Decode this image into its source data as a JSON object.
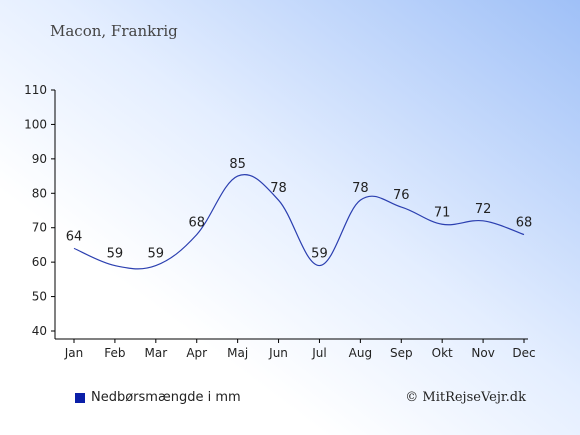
{
  "title": "Macon, Frankrig",
  "credit": "© MitRejseVejr.dk",
  "colors": {
    "line": "#2b3fb0",
    "axis": "#000000",
    "swatch": "#0b1fa8"
  },
  "chart_data": {
    "type": "line",
    "categories": [
      "Jan",
      "Feb",
      "Mar",
      "Apr",
      "Maj",
      "Jun",
      "Jul",
      "Aug",
      "Sep",
      "Okt",
      "Nov",
      "Dec"
    ],
    "series": [
      {
        "name": "Nedbørsmængde i mm",
        "values": [
          64,
          59,
          59,
          68,
          85,
          78,
          59,
          78,
          76,
          71,
          72,
          68
        ]
      }
    ],
    "data_labels": true,
    "ylim": [
      40,
      110
    ],
    "yticks": [
      40,
      50,
      60,
      70,
      80,
      90,
      100,
      110
    ],
    "grid": false,
    "legend": "bottom-left"
  }
}
